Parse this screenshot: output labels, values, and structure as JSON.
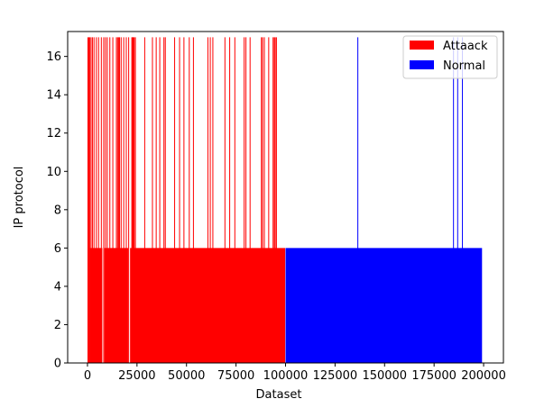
{
  "chart_data": {
    "type": "bar",
    "title": "",
    "xlabel": "Dataset",
    "ylabel": "IP protocol",
    "xlim": [
      -10000,
      210000
    ],
    "ylim": [
      0,
      17.3
    ],
    "xticks": [
      0,
      25000,
      50000,
      75000,
      100000,
      125000,
      150000,
      175000,
      200000
    ],
    "xtick_labels": [
      "0",
      "25000",
      "50000",
      "75000",
      "100000",
      "125000",
      "150000",
      "175000",
      "200000"
    ],
    "yticks": [
      0,
      2,
      4,
      6,
      8,
      10,
      12,
      14,
      16
    ],
    "ytick_labels": [
      "0",
      "2",
      "4",
      "6",
      "8",
      "10",
      "12",
      "14",
      "16"
    ],
    "legend_position": "top-right",
    "grid": false,
    "series": [
      {
        "name": "Attaack",
        "color": "#ff0000",
        "x_range": [
          0,
          100000
        ],
        "base_value": 6,
        "base_segments": [
          [
            1000,
            7500
          ],
          [
            8500,
            20500
          ],
          [
            21500,
            99800
          ]
        ],
        "peak_value": 17,
        "peak_x": [
          200,
          700,
          1200,
          1800,
          2500,
          3300,
          4500,
          5600,
          7000,
          8200,
          9100,
          10000,
          11300,
          12800,
          14600,
          15200,
          15700,
          16200,
          17000,
          18300,
          19600,
          20800,
          22400,
          22800,
          23200,
          23600,
          24200,
          28900,
          32800,
          34700,
          36500,
          38600,
          39300,
          44000,
          46500,
          48700,
          51400,
          53500,
          60800,
          62000,
          63300,
          69400,
          71800,
          74400,
          79100,
          80000,
          82100,
          87800,
          88400,
          89300,
          91500,
          93700,
          94300,
          94800,
          95400
        ]
      },
      {
        "name": "Normal",
        "color": "#0000ff",
        "x_range": [
          100000,
          200000
        ],
        "base_value": 6,
        "base_segments": [
          [
            100000,
            199200
          ]
        ],
        "peak_value": 17,
        "peak_x": [
          136500,
          184800,
          186900,
          189300
        ]
      }
    ]
  }
}
